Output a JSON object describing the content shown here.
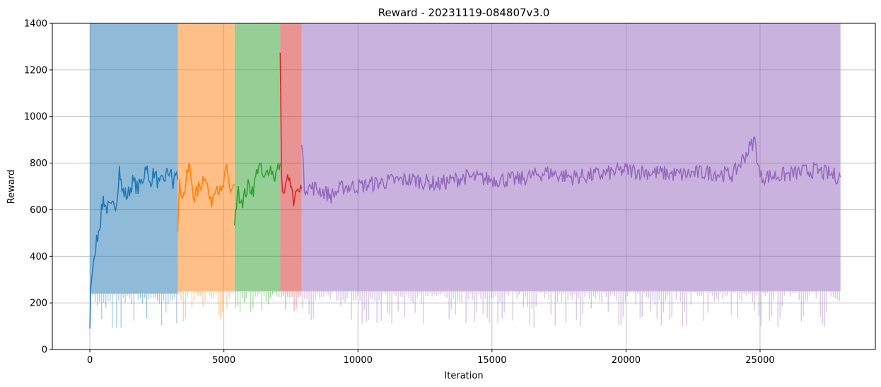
{
  "chart_data": {
    "type": "line",
    "title": "Reward - 20231119-084807v3.0",
    "xlabel": "Iteration",
    "ylabel": "Reward",
    "xlim": [
      -1400,
      29300
    ],
    "ylim": [
      0,
      1400
    ],
    "xticks": [
      0,
      5000,
      10000,
      15000,
      20000,
      25000
    ],
    "yticks": [
      0,
      200,
      400,
      600,
      800,
      1000,
      1200,
      1400
    ],
    "grid": true,
    "series": [
      {
        "color": "#1f77b4",
        "range": [
          0,
          3280
        ],
        "raw_band": [
          240,
          1400
        ],
        "raw_min": 80,
        "smoothed": [
          [
            0,
            90
          ],
          [
            30,
            260
          ],
          [
            120,
            360
          ],
          [
            250,
            470
          ],
          [
            400,
            560
          ],
          [
            500,
            650
          ],
          [
            600,
            610
          ],
          [
            800,
            600
          ],
          [
            1000,
            640
          ],
          [
            1100,
            780
          ],
          [
            1200,
            680
          ],
          [
            1400,
            660
          ],
          [
            1600,
            720
          ],
          [
            1800,
            690
          ],
          [
            2000,
            740
          ],
          [
            2100,
            800
          ],
          [
            2200,
            710
          ],
          [
            2400,
            760
          ],
          [
            2600,
            700
          ],
          [
            2800,
            740
          ],
          [
            3000,
            770
          ],
          [
            3100,
            700
          ],
          [
            3200,
            760
          ],
          [
            3280,
            730
          ]
        ]
      },
      {
        "color": "#ff7f0e",
        "range": [
          3280,
          5400
        ],
        "raw_band": [
          250,
          1400
        ],
        "raw_min": 120,
        "smoothed": [
          [
            3280,
            540
          ],
          [
            3350,
            700
          ],
          [
            3500,
            660
          ],
          [
            3700,
            790
          ],
          [
            3900,
            650
          ],
          [
            4100,
            700
          ],
          [
            4300,
            760
          ],
          [
            4500,
            620
          ],
          [
            4700,
            720
          ],
          [
            4900,
            660
          ],
          [
            5100,
            770
          ],
          [
            5250,
            680
          ],
          [
            5400,
            710
          ]
        ]
      },
      {
        "color": "#2ca02c",
        "range": [
          5400,
          7100
        ],
        "raw_band": [
          250,
          1400
        ],
        "raw_min": 150,
        "smoothed": [
          [
            5400,
            520
          ],
          [
            5500,
            680
          ],
          [
            5700,
            640
          ],
          [
            5900,
            700
          ],
          [
            6100,
            690
          ],
          [
            6300,
            800
          ],
          [
            6500,
            720
          ],
          [
            6700,
            790
          ],
          [
            6900,
            740
          ],
          [
            7100,
            800
          ]
        ]
      },
      {
        "color": "#d62728",
        "range": [
          7100,
          7900
        ],
        "raw_band": [
          250,
          1400
        ],
        "raw_min": 150,
        "smoothed": [
          [
            7100,
            1300
          ],
          [
            7150,
            720
          ],
          [
            7300,
            680
          ],
          [
            7450,
            760
          ],
          [
            7600,
            640
          ],
          [
            7750,
            720
          ],
          [
            7900,
            690
          ]
        ]
      },
      {
        "color": "#9467bd",
        "range": [
          7900,
          28000
        ],
        "raw_band": [
          250,
          1400
        ],
        "raw_min": 90,
        "smoothed": [
          [
            7900,
            910
          ],
          [
            8000,
            700
          ],
          [
            8500,
            690
          ],
          [
            9000,
            660
          ],
          [
            9500,
            700
          ],
          [
            10000,
            700
          ],
          [
            11000,
            720
          ],
          [
            12000,
            730
          ],
          [
            13000,
            710
          ],
          [
            14000,
            740
          ],
          [
            15000,
            730
          ],
          [
            16000,
            730
          ],
          [
            17000,
            760
          ],
          [
            18000,
            740
          ],
          [
            19000,
            750
          ],
          [
            20000,
            770
          ],
          [
            21000,
            760
          ],
          [
            22000,
            750
          ],
          [
            23000,
            760
          ],
          [
            24000,
            750
          ],
          [
            24800,
            900
          ],
          [
            25000,
            740
          ],
          [
            26000,
            750
          ],
          [
            27000,
            770
          ],
          [
            28000,
            740
          ]
        ]
      }
    ]
  }
}
